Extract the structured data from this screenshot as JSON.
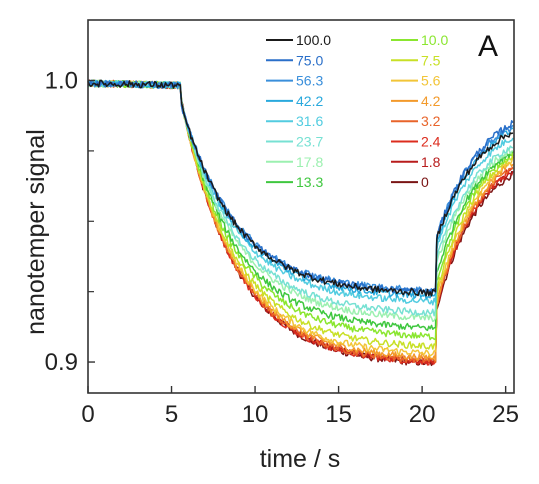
{
  "chart_data": {
    "type": "line",
    "panel_label": "A",
    "xlabel": "time / s",
    "ylabel": "nanotemper signal",
    "xlim": [
      0,
      25.5
    ],
    "ylim": [
      0.889,
      1.0215
    ],
    "x_ticks": [
      0,
      5,
      10,
      15,
      20,
      25
    ],
    "x_tick_labels": [
      "0",
      "5",
      "10",
      "15",
      "20",
      "25"
    ],
    "y_ticks_labeled": [
      1.0,
      0.9
    ],
    "y_tick_labels": [
      "1.0",
      "0.9"
    ],
    "y_ticks_minor": [
      0.975,
      0.95,
      0.925
    ],
    "grid": false,
    "legend_position": "top-right",
    "phases": {
      "laser_on": 5.6,
      "laser_off": 20.8
    },
    "series": [
      {
        "name": "100.0",
        "color": "#1a1a1a",
        "start": 0.999,
        "plateau_hot": 0.9245,
        "end": 0.982
      },
      {
        "name": "75.0",
        "color": "#2a6fc9",
        "start": 0.999,
        "plateau_hot": 0.925,
        "end": 0.985
      },
      {
        "name": "56.3",
        "color": "#3a8fdb",
        "start": 0.999,
        "plateau_hot": 0.9255,
        "end": 0.984
      },
      {
        "name": "42.2",
        "color": "#29a9dd",
        "start": 0.999,
        "plateau_hot": 0.9235,
        "end": 0.983
      },
      {
        "name": "31.6",
        "color": "#52cce0",
        "start": 0.999,
        "plateau_hot": 0.9215,
        "end": 0.98
      },
      {
        "name": "23.7",
        "color": "#77e1d3",
        "start": 0.999,
        "plateau_hot": 0.9175,
        "end": 0.977
      },
      {
        "name": "17.8",
        "color": "#9cf0b0",
        "start": 0.999,
        "plateau_hot": 0.9155,
        "end": 0.976
      },
      {
        "name": "13.3",
        "color": "#3fc73f",
        "start": 0.999,
        "plateau_hot": 0.912,
        "end": 0.975
      },
      {
        "name": "10.0",
        "color": "#8ae62f",
        "start": 0.999,
        "plateau_hot": 0.909,
        "end": 0.974
      },
      {
        "name": "7.5",
        "color": "#c8e026",
        "start": 0.999,
        "plateau_hot": 0.9055,
        "end": 0.973
      },
      {
        "name": "5.6",
        "color": "#f2c538",
        "start": 0.999,
        "plateau_hot": 0.903,
        "end": 0.972
      },
      {
        "name": "4.2",
        "color": "#f39a2b",
        "start": 0.999,
        "plateau_hot": 0.9015,
        "end": 0.971
      },
      {
        "name": "3.2",
        "color": "#e8642a",
        "start": 0.999,
        "plateau_hot": 0.9005,
        "end": 0.97
      },
      {
        "name": "2.4",
        "color": "#dc2c1e",
        "start": 0.999,
        "plateau_hot": 0.9,
        "end": 0.969
      },
      {
        "name": "1.8",
        "color": "#b81c1c",
        "start": 0.999,
        "plateau_hot": 0.9,
        "end": 0.968
      },
      {
        "name": "0",
        "color": "#7a1414",
        "start": 0.999,
        "plateau_hot": 0.8995,
        "end": 0.967
      }
    ]
  }
}
